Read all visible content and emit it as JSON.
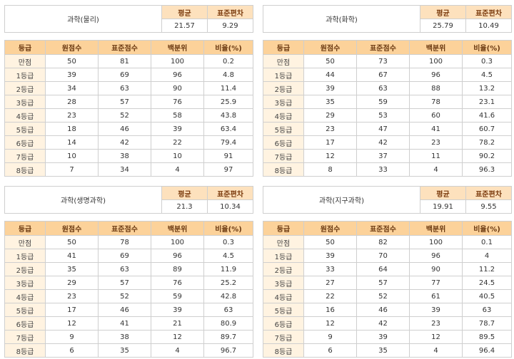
{
  "headers": {
    "mean": "평균",
    "std": "표준편차",
    "cols": [
      "등급",
      "원점수",
      "표준점수",
      "백분위",
      "비율(%)"
    ]
  },
  "panels": [
    {
      "subject": "과학(물리)",
      "mean": "21.57",
      "std": "9.29",
      "rows": [
        [
          "만점",
          "50",
          "81",
          "100",
          "0.2"
        ],
        [
          "1등급",
          "39",
          "69",
          "96",
          "4.8"
        ],
        [
          "2등급",
          "34",
          "63",
          "90",
          "11.4"
        ],
        [
          "3등급",
          "28",
          "57",
          "76",
          "25.9"
        ],
        [
          "4등급",
          "23",
          "52",
          "58",
          "43.8"
        ],
        [
          "5등급",
          "18",
          "46",
          "39",
          "63.4"
        ],
        [
          "6등급",
          "14",
          "42",
          "22",
          "79.4"
        ],
        [
          "7등급",
          "10",
          "38",
          "10",
          "91"
        ],
        [
          "8등급",
          "7",
          "34",
          "4",
          "97"
        ]
      ]
    },
    {
      "subject": "과학(화학)",
      "mean": "25.79",
      "std": "10.49",
      "rows": [
        [
          "만점",
          "50",
          "73",
          "100",
          "0.3"
        ],
        [
          "1등급",
          "44",
          "67",
          "96",
          "4.5"
        ],
        [
          "2등급",
          "39",
          "63",
          "88",
          "13.2"
        ],
        [
          "3등급",
          "35",
          "59",
          "78",
          "23.1"
        ],
        [
          "4등급",
          "29",
          "53",
          "60",
          "41.6"
        ],
        [
          "5등급",
          "23",
          "47",
          "41",
          "60.7"
        ],
        [
          "6등급",
          "17",
          "42",
          "23",
          "78.2"
        ],
        [
          "7등급",
          "12",
          "37",
          "11",
          "90.2"
        ],
        [
          "8등급",
          "8",
          "33",
          "4",
          "96.3"
        ]
      ]
    },
    {
      "subject": "과학(생명과학)",
      "mean": "21.3",
      "std": "10.34",
      "rows": [
        [
          "만점",
          "50",
          "78",
          "100",
          "0.3"
        ],
        [
          "1등급",
          "41",
          "69",
          "96",
          "4.5"
        ],
        [
          "2등급",
          "35",
          "63",
          "89",
          "11.9"
        ],
        [
          "3등급",
          "29",
          "57",
          "76",
          "25.2"
        ],
        [
          "4등급",
          "23",
          "52",
          "59",
          "42.8"
        ],
        [
          "5등급",
          "17",
          "46",
          "39",
          "63"
        ],
        [
          "6등급",
          "12",
          "41",
          "21",
          "80.9"
        ],
        [
          "7등급",
          "9",
          "38",
          "12",
          "89.7"
        ],
        [
          "8등급",
          "6",
          "35",
          "4",
          "96.7"
        ]
      ]
    },
    {
      "subject": "과학(지구과학)",
      "mean": "19.91",
      "std": "9.55",
      "rows": [
        [
          "만점",
          "50",
          "82",
          "100",
          "0.1"
        ],
        [
          "1등급",
          "39",
          "70",
          "96",
          "4"
        ],
        [
          "2등급",
          "33",
          "64",
          "90",
          "11.2"
        ],
        [
          "3등급",
          "27",
          "57",
          "77",
          "24.5"
        ],
        [
          "4등급",
          "22",
          "52",
          "61",
          "40.5"
        ],
        [
          "5등급",
          "16",
          "46",
          "39",
          "63"
        ],
        [
          "6등급",
          "12",
          "42",
          "23",
          "78.7"
        ],
        [
          "7등급",
          "9",
          "39",
          "12",
          "89.5"
        ],
        [
          "8등급",
          "6",
          "35",
          "4",
          "96.4"
        ]
      ]
    }
  ]
}
